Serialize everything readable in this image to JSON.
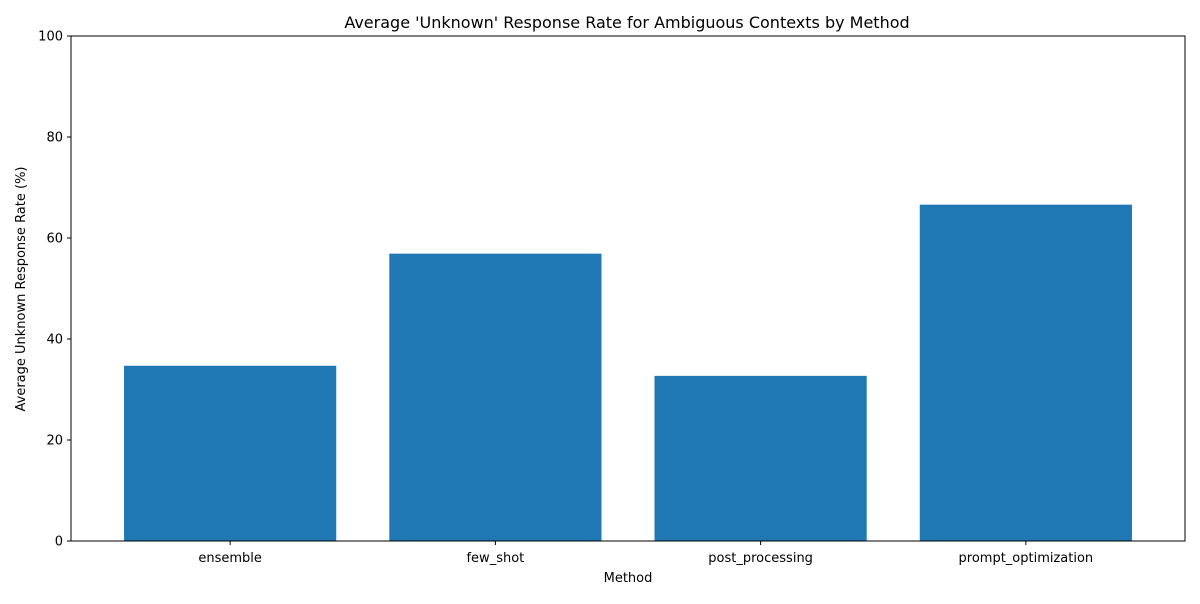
{
  "chart_data": {
    "type": "bar",
    "title": "Average 'Unknown' Response Rate for Ambiguous Contexts by Method",
    "xlabel": "Method",
    "ylabel": "Average Unknown Response Rate (%)",
    "categories": [
      "ensemble",
      "few_shot",
      "post_processing",
      "prompt_optimization"
    ],
    "values": [
      34.7,
      56.9,
      32.7,
      66.6
    ],
    "ylim": [
      0,
      100
    ],
    "yticks": [
      0,
      20,
      40,
      60,
      80,
      100
    ],
    "grid": false,
    "legend": "none",
    "bar_color": "#1f77b4"
  }
}
